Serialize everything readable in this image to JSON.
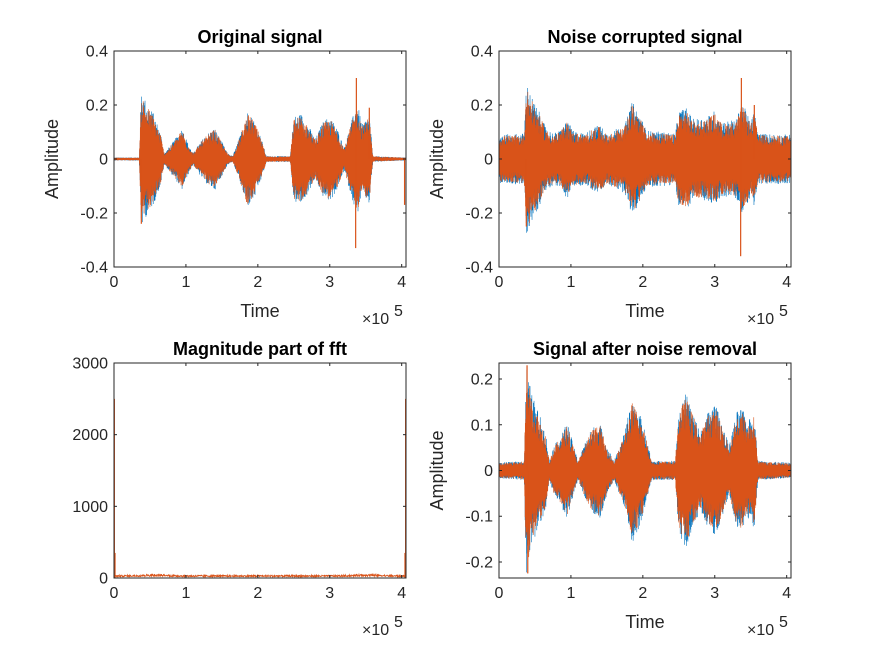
{
  "colors": {
    "series_blue": "#0072BD",
    "series_orange": "#D95319",
    "axes": "#262626"
  },
  "chart_data": [
    {
      "type": "line",
      "title": "Original signal",
      "xlabel": "Time",
      "ylabel": "Amplitude",
      "x_exponent_label": "×10",
      "x_exponent_power": "5",
      "xlim": [
        0,
        4.06
      ],
      "ylim": [
        -0.4,
        0.4
      ],
      "xticks": [
        0,
        1,
        2,
        3,
        4
      ],
      "xtick_labels": [
        "0",
        "1",
        "2",
        "3",
        "4"
      ],
      "yticks": [
        -0.4,
        -0.2,
        0,
        0.2,
        0.4
      ],
      "ytick_labels": [
        "-0.4",
        "-0.2",
        "0",
        "0.2",
        "0.4"
      ],
      "baseline_noise": 0.004,
      "envelope": [
        [
          0,
          0.005
        ],
        [
          0.35,
          0.005
        ],
        [
          0.38,
          0.24
        ],
        [
          0.45,
          0.2
        ],
        [
          0.55,
          0.16
        ],
        [
          0.65,
          0.09
        ],
        [
          0.7,
          0.02
        ],
        [
          0.76,
          0.04
        ],
        [
          0.85,
          0.07
        ],
        [
          0.95,
          0.11
        ],
        [
          1.02,
          0.06
        ],
        [
          1.1,
          0.02
        ],
        [
          1.2,
          0.06
        ],
        [
          1.3,
          0.09
        ],
        [
          1.4,
          0.11
        ],
        [
          1.5,
          0.06
        ],
        [
          1.58,
          0.02
        ],
        [
          1.65,
          0.01
        ],
        [
          1.75,
          0.08
        ],
        [
          1.85,
          0.17
        ],
        [
          1.95,
          0.14
        ],
        [
          2.05,
          0.07
        ],
        [
          2.12,
          0.01
        ],
        [
          2.45,
          0.01
        ],
        [
          2.5,
          0.15
        ],
        [
          2.6,
          0.16
        ],
        [
          2.7,
          0.12
        ],
        [
          2.8,
          0.07
        ],
        [
          2.9,
          0.13
        ],
        [
          3.0,
          0.15
        ],
        [
          3.1,
          0.11
        ],
        [
          3.2,
          0.04
        ],
        [
          3.3,
          0.13
        ],
        [
          3.38,
          0.2
        ],
        [
          3.45,
          0.12
        ],
        [
          3.55,
          0.16
        ],
        [
          3.6,
          0.01
        ],
        [
          4.06,
          0.005
        ]
      ],
      "spikes": [
        [
          3.37,
          0.3
        ],
        [
          3.36,
          -0.33
        ],
        [
          0.38,
          -0.24
        ],
        [
          3.55,
          0.19
        ],
        [
          4.04,
          -0.17
        ]
      ]
    },
    {
      "type": "line",
      "title": "Noise corrupted signal",
      "xlabel": "Time",
      "ylabel": "Amplitude",
      "x_exponent_label": "×10",
      "x_exponent_power": "5",
      "xlim": [
        0,
        4.06
      ],
      "ylim": [
        -0.4,
        0.4
      ],
      "xticks": [
        0,
        1,
        2,
        3,
        4
      ],
      "xtick_labels": [
        "0",
        "1",
        "2",
        "3",
        "4"
      ],
      "yticks": [
        -0.4,
        -0.2,
        0,
        0.2,
        0.4
      ],
      "ytick_labels": [
        "-0.4",
        "-0.2",
        "0",
        "0.2",
        "0.4"
      ],
      "baseline_noise": 0.085,
      "envelope": [
        [
          0,
          0.085
        ],
        [
          0.35,
          0.09
        ],
        [
          0.38,
          0.27
        ],
        [
          0.45,
          0.22
        ],
        [
          0.55,
          0.17
        ],
        [
          0.65,
          0.11
        ],
        [
          0.76,
          0.09
        ],
        [
          0.85,
          0.1
        ],
        [
          0.95,
          0.14
        ],
        [
          1.02,
          0.1
        ],
        [
          1.2,
          0.09
        ],
        [
          1.3,
          0.11
        ],
        [
          1.4,
          0.12
        ],
        [
          1.5,
          0.09
        ],
        [
          1.75,
          0.12
        ],
        [
          1.85,
          0.2
        ],
        [
          1.95,
          0.16
        ],
        [
          2.05,
          0.1
        ],
        [
          2.45,
          0.09
        ],
        [
          2.5,
          0.17
        ],
        [
          2.6,
          0.18
        ],
        [
          2.7,
          0.14
        ],
        [
          2.9,
          0.15
        ],
        [
          3.0,
          0.17
        ],
        [
          3.1,
          0.13
        ],
        [
          3.3,
          0.14
        ],
        [
          3.38,
          0.2
        ],
        [
          3.5,
          0.13
        ],
        [
          3.55,
          0.17
        ],
        [
          3.6,
          0.09
        ],
        [
          4.06,
          0.085
        ]
      ],
      "spikes": [
        [
          3.37,
          0.3
        ],
        [
          3.36,
          -0.36
        ],
        [
          0.38,
          -0.25
        ],
        [
          3.55,
          0.2
        ]
      ]
    },
    {
      "type": "line",
      "title": "Magnitude part of fft",
      "xlabel": "",
      "ylabel": "",
      "x_exponent_label": "×10",
      "x_exponent_power": "5",
      "xlim": [
        0,
        4.06
      ],
      "ylim": [
        0,
        3000
      ],
      "xticks": [
        0,
        1,
        2,
        3,
        4
      ],
      "xtick_labels": [
        "0",
        "1",
        "2",
        "3",
        "4"
      ],
      "yticks": [
        0,
        1000,
        2000,
        3000
      ],
      "ytick_labels": [
        "0",
        "1000",
        "2000",
        "3000"
      ],
      "baseline": 28,
      "edge_peak": 2500,
      "edge_secondary": 350
    },
    {
      "type": "line",
      "title": "Signal after noise removal",
      "xlabel": "Time",
      "ylabel": "Amplitude",
      "x_exponent_label": "×10",
      "x_exponent_power": "5",
      "xlim": [
        0,
        4.06
      ],
      "ylim": [
        -0.235,
        0.235
      ],
      "xticks": [
        0,
        1,
        2,
        3,
        4
      ],
      "xtick_labels": [
        "0",
        "1",
        "2",
        "3",
        "4"
      ],
      "yticks": [
        -0.2,
        -0.1,
        0,
        0.1,
        0.2
      ],
      "ytick_labels": [
        "-0.2",
        "-0.1",
        "0",
        "0.1",
        "0.2"
      ],
      "baseline_noise": 0.016,
      "envelope": [
        [
          0,
          0.016
        ],
        [
          0.35,
          0.02
        ],
        [
          0.38,
          0.22
        ],
        [
          0.45,
          0.16
        ],
        [
          0.55,
          0.12
        ],
        [
          0.65,
          0.08
        ],
        [
          0.7,
          0.02
        ],
        [
          0.76,
          0.05
        ],
        [
          0.85,
          0.07
        ],
        [
          0.95,
          0.1
        ],
        [
          1.02,
          0.06
        ],
        [
          1.1,
          0.02
        ],
        [
          1.2,
          0.06
        ],
        [
          1.3,
          0.09
        ],
        [
          1.4,
          0.1
        ],
        [
          1.5,
          0.05
        ],
        [
          1.6,
          0.02
        ],
        [
          1.75,
          0.08
        ],
        [
          1.85,
          0.15
        ],
        [
          1.95,
          0.12
        ],
        [
          2.05,
          0.07
        ],
        [
          2.12,
          0.02
        ],
        [
          2.45,
          0.02
        ],
        [
          2.5,
          0.13
        ],
        [
          2.6,
          0.16
        ],
        [
          2.7,
          0.12
        ],
        [
          2.8,
          0.08
        ],
        [
          2.9,
          0.12
        ],
        [
          3.0,
          0.14
        ],
        [
          3.1,
          0.1
        ],
        [
          3.2,
          0.05
        ],
        [
          3.3,
          0.12
        ],
        [
          3.38,
          0.13
        ],
        [
          3.45,
          0.1
        ],
        [
          3.55,
          0.12
        ],
        [
          3.6,
          0.02
        ],
        [
          4.06,
          0.016
        ]
      ],
      "spikes": [
        [
          0.39,
          0.23
        ],
        [
          0.4,
          -0.225
        ]
      ]
    }
  ]
}
